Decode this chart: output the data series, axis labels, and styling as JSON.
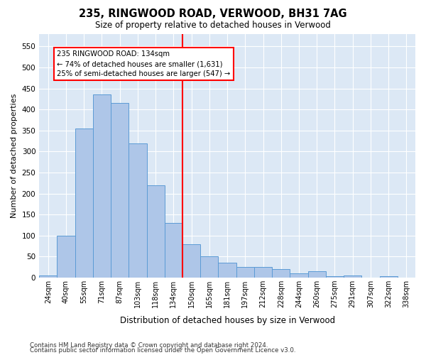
{
  "title": "235, RINGWOOD ROAD, VERWOOD, BH31 7AG",
  "subtitle": "Size of property relative to detached houses in Verwood",
  "xlabel": "Distribution of detached houses by size in Verwood",
  "ylabel": "Number of detached properties",
  "bar_labels": [
    "24sqm",
    "40sqm",
    "55sqm",
    "71sqm",
    "87sqm",
    "103sqm",
    "118sqm",
    "134sqm",
    "150sqm",
    "165sqm",
    "181sqm",
    "197sqm",
    "212sqm",
    "228sqm",
    "244sqm",
    "260sqm",
    "275sqm",
    "291sqm",
    "307sqm",
    "322sqm",
    "338sqm"
  ],
  "bar_values": [
    5,
    100,
    355,
    435,
    415,
    320,
    220,
    130,
    80,
    50,
    35,
    25,
    25,
    20,
    10,
    15,
    3,
    5,
    1,
    3,
    1
  ],
  "bar_color": "#aec6e8",
  "bar_edge_color": "#5b9bd5",
  "vline_color": "red",
  "annotation_title": "235 RINGWOOD ROAD: 134sqm",
  "annotation_line1": "← 74% of detached houses are smaller (1,631)",
  "annotation_line2": "25% of semi-detached houses are larger (547) →",
  "annotation_box_color": "white",
  "annotation_box_edge_color": "red",
  "ylim": [
    0,
    580
  ],
  "yticks": [
    0,
    50,
    100,
    150,
    200,
    250,
    300,
    350,
    400,
    450,
    500,
    550
  ],
  "footnote1": "Contains HM Land Registry data © Crown copyright and database right 2024.",
  "footnote2": "Contains public sector information licensed under the Open Government Licence v3.0.",
  "bg_color": "#dce8f5",
  "grid_color": "white"
}
